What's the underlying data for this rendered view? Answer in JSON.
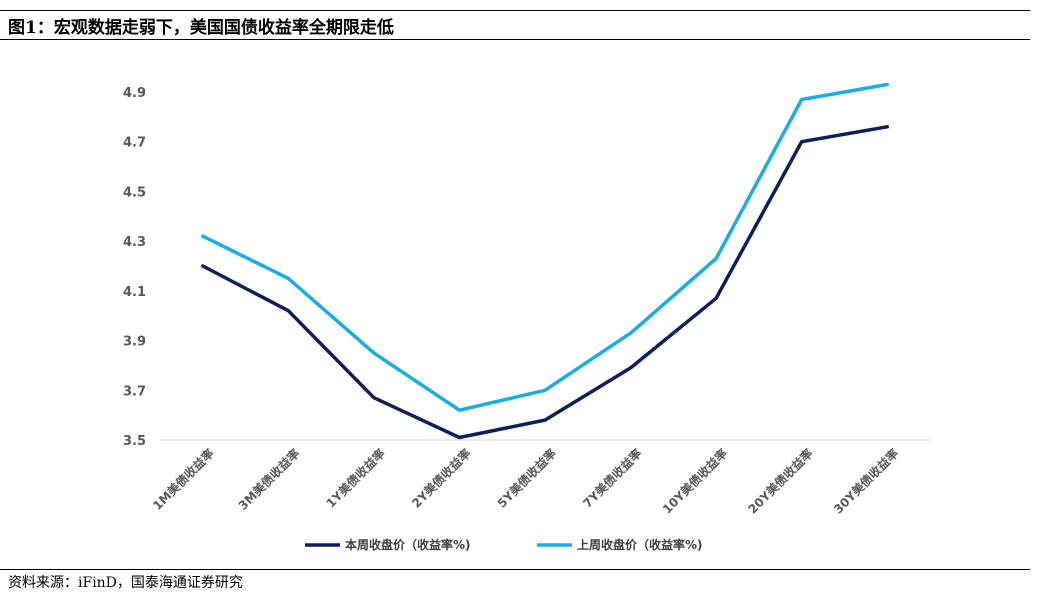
{
  "header": {
    "title": "图1：宏观数据走弱下，美国国债收益率全期限走低"
  },
  "footer": {
    "source": "资料来源：iFinD，国泰海通证券研究"
  },
  "colors": {
    "this_week": "#0b1f5c",
    "last_week": "#1aaee6",
    "axis": "#d9d9d9",
    "tick_text": "#595959"
  },
  "chart_data": {
    "type": "line",
    "title": "图1：宏观数据走弱下，美国国债收益率全期限走低",
    "xlabel": "",
    "ylabel": "",
    "ylim": [
      3.5,
      4.9
    ],
    "yticks": [
      "3.5",
      "3.7",
      "3.9",
      "4.1",
      "4.3",
      "4.5",
      "4.7",
      "4.9"
    ],
    "categories": [
      "1M美债收益率",
      "3M美债收益率",
      "1Y美债收益率",
      "2Y美债收益率",
      "5Y美债收益率",
      "7Y美债收益率",
      "10Y美债收益率",
      "20Y美债收益率",
      "30Y美债收益率"
    ],
    "series": [
      {
        "name": "本周收盘价（收益率%)",
        "values": [
          4.2,
          4.02,
          3.67,
          3.51,
          3.58,
          3.79,
          4.07,
          4.7,
          4.76
        ]
      },
      {
        "name": "上周收盘价（收益率%)",
        "values": [
          4.32,
          4.15,
          3.85,
          3.62,
          3.7,
          3.93,
          4.23,
          4.87,
          4.93
        ]
      }
    ],
    "grid": false,
    "legend": "bottom-center"
  }
}
